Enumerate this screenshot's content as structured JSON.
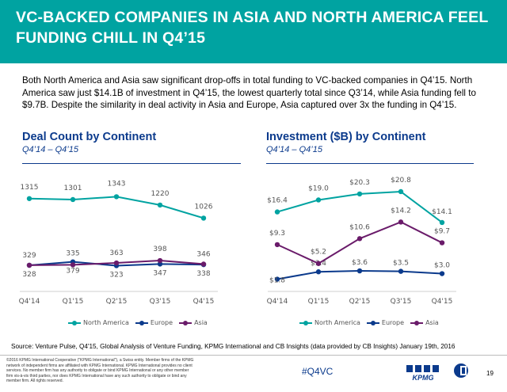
{
  "header": {
    "title": "VC-BACKED COMPANIES IN ASIA AND NORTH AMERICA FEEL FUNDING CHILL IN Q4’15"
  },
  "intro": "Both North America and Asia saw significant drop-offs in total funding to VC-backed companies in Q4’15. North America saw just $14.1B of investment in Q4’15, the lowest quarterly total since Q3’14, while Asia funding fell to $9.7B. Despite the similarity in deal activity in Asia and Europe, Asia captured over 3x the funding in Q4’15.",
  "colors": {
    "north_america": "#00a3a1",
    "europe": "#0b3a8c",
    "asia": "#6a1b6a",
    "brand": "#00a3a1"
  },
  "chart_data": [
    {
      "type": "line",
      "title": "Deal Count by Continent",
      "subtitle": "Q4’14 – Q4’15",
      "categories": [
        "Q4'14",
        "Q1'15",
        "Q2'15",
        "Q3'15",
        "Q4'15"
      ],
      "ylim": [
        0,
        1500
      ],
      "grid": false,
      "legend": "bottom",
      "series": [
        {
          "name": "North America",
          "values": [
            1315,
            1301,
            1343,
            1220,
            1026
          ],
          "labels": [
            "1315",
            "1301",
            "1343",
            "1220",
            "1026"
          ]
        },
        {
          "name": "Europe",
          "values": [
            328,
            379,
            323,
            347,
            338
          ],
          "labels": [
            "328",
            "379",
            "323",
            "347",
            "338"
          ]
        },
        {
          "name": "Asia",
          "values": [
            329,
            335,
            363,
            398,
            346
          ],
          "labels": [
            "329",
            "335",
            "363",
            "398",
            "346"
          ]
        }
      ]
    },
    {
      "type": "line",
      "title": "Investment ($B) by Continent",
      "subtitle": "Q4’14 – Q4’15",
      "categories": [
        "Q4'14",
        "Q1'15",
        "Q2'15",
        "Q3'15",
        "Q4'15"
      ],
      "ylim": [
        0,
        22
      ],
      "grid": false,
      "legend": "bottom",
      "series": [
        {
          "name": "North America",
          "values": [
            16.4,
            19.0,
            20.3,
            20.8,
            14.1
          ],
          "labels": [
            "$16.4",
            "$19.0",
            "$20.3",
            "$20.8",
            "$14.1"
          ]
        },
        {
          "name": "Europe",
          "values": [
            1.8,
            3.4,
            3.6,
            3.5,
            3.0
          ],
          "labels": [
            "$1.8",
            "$3.4",
            "$3.6",
            "$3.5",
            "$3.0"
          ]
        },
        {
          "name": "Asia",
          "values": [
            9.3,
            5.2,
            10.6,
            14.2,
            9.7
          ],
          "labels": [
            "$9.3",
            "$5.2",
            "$10.6",
            "$14.2",
            "$9.7"
          ]
        }
      ]
    }
  ],
  "source": "Source: Venture Pulse, Q4'15, Global Analysis of Venture Funding, KPMG International and CB Insights (data provided by CB Insights) January 19th, 2016",
  "footer": {
    "disclaimer": "©2016 KPMG International Cooperative (\"KPMG International\"), a Swiss entity. Member firms of the KPMG network of independent firms are affiliated with KPMG International. KPMG International provides no client services. No member firm has any authority to obligate or bind KPMG International or any other member firm vis-à-vis third parties, nor does KPMG International have any such authority to obligate or bind any member firm. All rights reserved.",
    "hashtag": "#Q4VC",
    "kpmg_logo": "KPMG",
    "page_number": "19"
  }
}
